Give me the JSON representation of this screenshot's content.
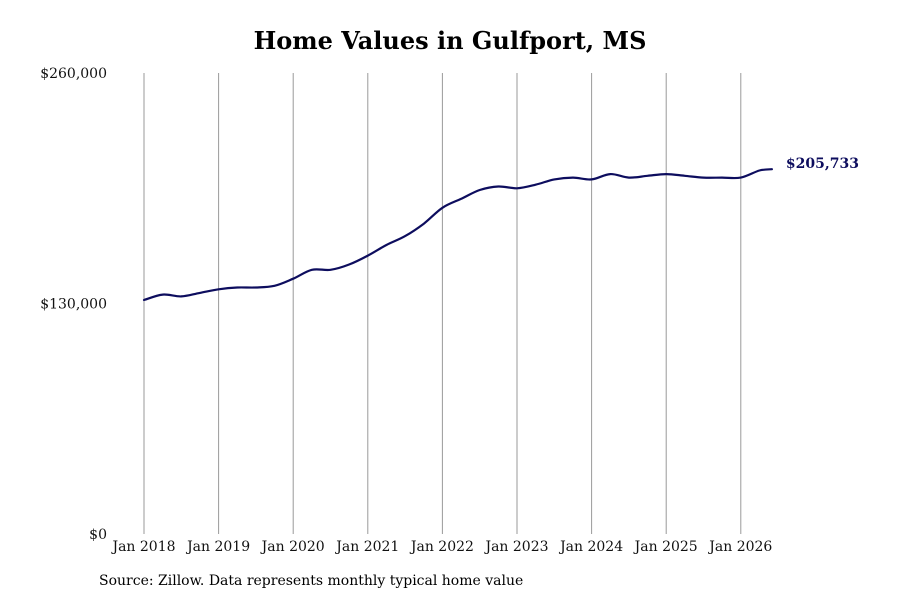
{
  "chart_data": {
    "type": "line",
    "title": "Home Values in Gulfport, MS",
    "xlabel": "",
    "ylabel": "",
    "ylim": [
      0,
      260000
    ],
    "y_ticks": [
      0,
      130000,
      260000
    ],
    "y_tick_labels": [
      "$0",
      "$130,000",
      "$260,000"
    ],
    "x_ticks": [
      "2018-01",
      "2019-01",
      "2020-01",
      "2021-01",
      "2022-01",
      "2023-01",
      "2024-01",
      "2025-01",
      "2026-01"
    ],
    "x_tick_labels": [
      "Jan 2018",
      "Jan 2019",
      "Jan 2020",
      "Jan 2021",
      "Jan 2022",
      "Jan 2023",
      "Jan 2024",
      "Jan 2025",
      "Jan 2026"
    ],
    "grid": "vertical",
    "line_color": "#0d0d5e",
    "series": [
      {
        "x": [
          "2018-01",
          "2018-04",
          "2018-07",
          "2018-10",
          "2019-01",
          "2019-04",
          "2019-07",
          "2019-10",
          "2020-01",
          "2020-04",
          "2020-07",
          "2020-10",
          "2021-01",
          "2021-04",
          "2021-07",
          "2021-10",
          "2022-01",
          "2022-04",
          "2022-07",
          "2022-10",
          "2023-01",
          "2023-04",
          "2023-07",
          "2023-10",
          "2024-01",
          "2024-04",
          "2024-07",
          "2024-10",
          "2025-01",
          "2025-04",
          "2025-07",
          "2025-10",
          "2026-01",
          "2026-04",
          "2026-06"
        ],
        "values": [
          132000,
          135000,
          134000,
          136000,
          138000,
          139000,
          139000,
          140000,
          144000,
          149000,
          149000,
          152000,
          157000,
          163000,
          168000,
          175000,
          184000,
          189000,
          194000,
          196000,
          195000,
          197000,
          200000,
          201000,
          200000,
          203000,
          201000,
          202000,
          203000,
          202000,
          201000,
          201000,
          201000,
          205000,
          205733
        ]
      }
    ],
    "end_label": "$205,733"
  },
  "source": "Source: Zillow. Data represents monthly typical home value"
}
